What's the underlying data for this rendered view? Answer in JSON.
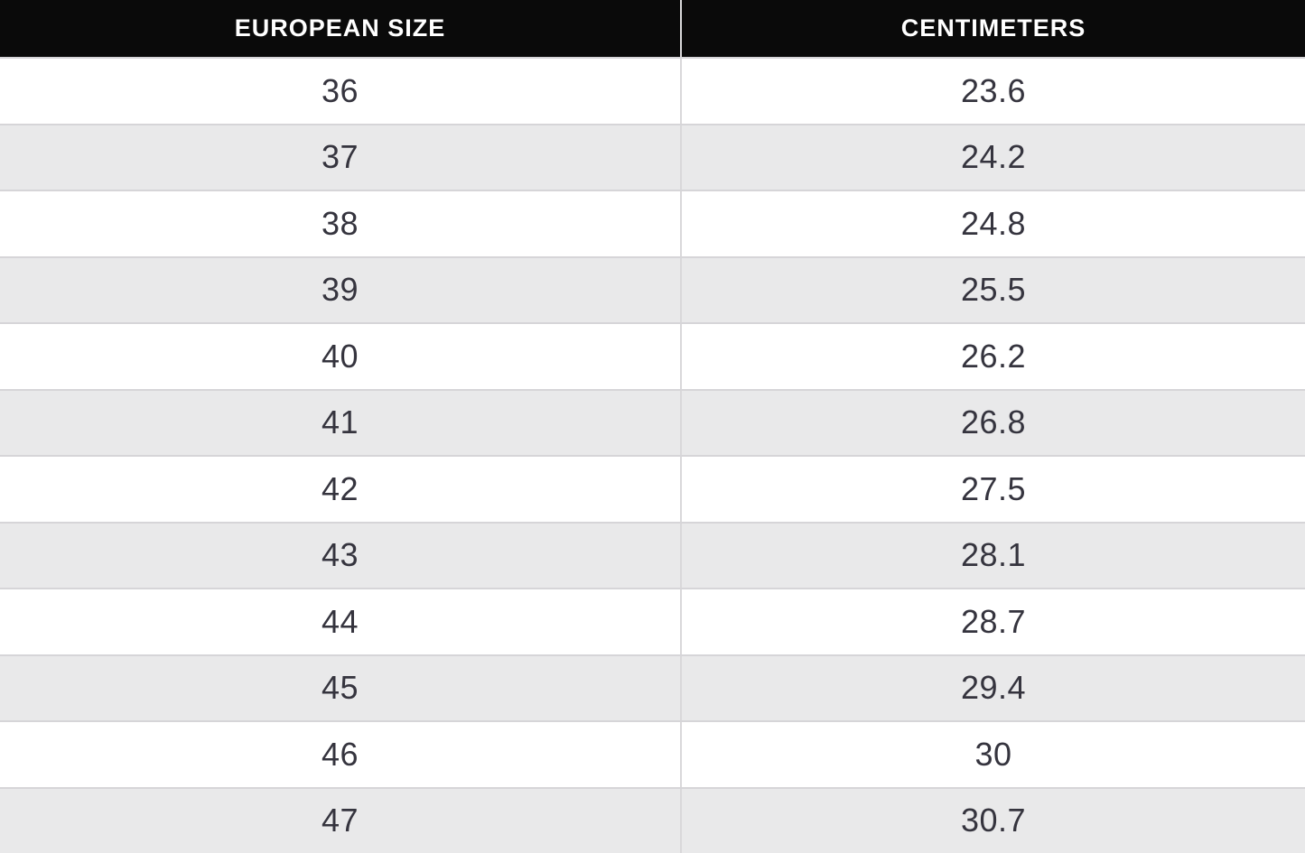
{
  "table": {
    "columns": [
      {
        "label": "EUROPEAN SIZE"
      },
      {
        "label": "CENTIMETERS"
      }
    ],
    "rows": [
      {
        "size": "36",
        "cm": "23.6"
      },
      {
        "size": "37",
        "cm": "24.2"
      },
      {
        "size": "38",
        "cm": "24.8"
      },
      {
        "size": "39",
        "cm": "25.5"
      },
      {
        "size": "40",
        "cm": "26.2"
      },
      {
        "size": "41",
        "cm": "26.8"
      },
      {
        "size": "42",
        "cm": "27.5"
      },
      {
        "size": "43",
        "cm": "28.1"
      },
      {
        "size": "44",
        "cm": "28.7"
      },
      {
        "size": "45",
        "cm": "29.4"
      },
      {
        "size": "46",
        "cm": "30"
      },
      {
        "size": "47",
        "cm": "30.7"
      }
    ]
  },
  "colors": {
    "header_bg": "#0a0a0a",
    "header_text": "#ffffff",
    "row_bg": "#ffffff",
    "row_alt_bg": "#e9e9ea",
    "divider": "#d6d5d8",
    "cell_text": "#35343e"
  },
  "chart_data": {
    "type": "table",
    "columns": [
      "EUROPEAN SIZE",
      "CENTIMETERS"
    ],
    "rows": [
      [
        36,
        23.6
      ],
      [
        37,
        24.2
      ],
      [
        38,
        24.8
      ],
      [
        39,
        25.5
      ],
      [
        40,
        26.2
      ],
      [
        41,
        26.8
      ],
      [
        42,
        27.5
      ],
      [
        43,
        28.1
      ],
      [
        44,
        28.7
      ],
      [
        45,
        29.4
      ],
      [
        46,
        30
      ],
      [
        47,
        30.7
      ]
    ]
  }
}
